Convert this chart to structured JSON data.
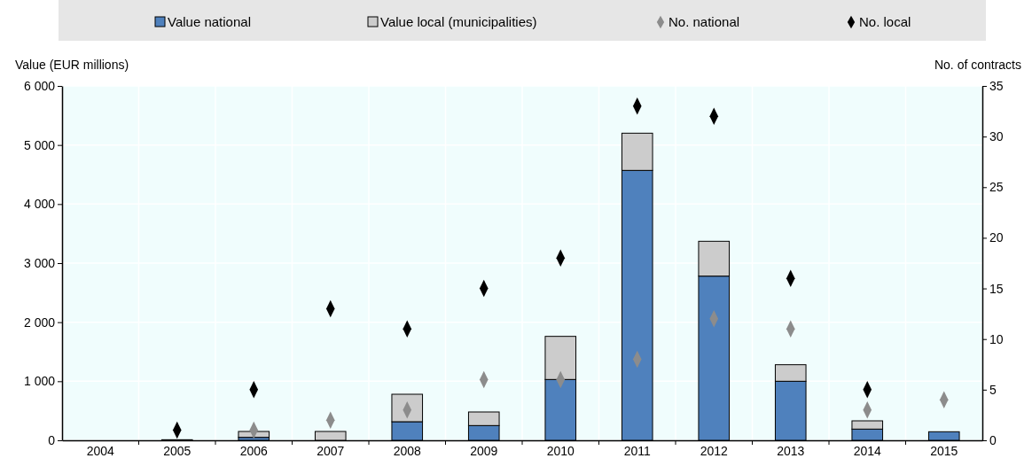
{
  "chart_data": {
    "type": "bar",
    "stacked": true,
    "categories": [
      "2004",
      "2005",
      "2006",
      "2007",
      "2008",
      "2009",
      "2010",
      "2011",
      "2012",
      "2013",
      "2014",
      "2015"
    ],
    "series": [
      {
        "name": "Value national",
        "color": "#4f81bd",
        "values": [
          0,
          10,
          50,
          0,
          315,
          250,
          1030,
          4570,
          2780,
          1000,
          190,
          145
        ]
      },
      {
        "name": "Value local (municipalities)",
        "color": "#cccccc",
        "values": [
          0,
          0,
          100,
          150,
          465,
          230,
          730,
          630,
          590,
          280,
          140,
          0
        ]
      },
      {
        "name": "No. national",
        "type": "scatter",
        "axis": "y2",
        "color": "#8c8c8c",
        "values": [
          null,
          null,
          1,
          2,
          3,
          6,
          6,
          8,
          12,
          11,
          3,
          4
        ]
      },
      {
        "name": "No. local",
        "type": "scatter",
        "axis": "y2",
        "color": "#000000",
        "values": [
          null,
          1,
          5,
          13,
          11,
          15,
          18,
          33,
          32,
          16,
          5,
          null
        ]
      }
    ],
    "ylabel": "Value (EUR millions)",
    "y2label": "No. of contracts",
    "ylim": [
      0,
      6000
    ],
    "yticks": [
      {
        "value": 0,
        "label": "0"
      },
      {
        "value": 1000,
        "label": "1 000"
      },
      {
        "value": 2000,
        "label": "2 000"
      },
      {
        "value": 3000,
        "label": "3 000"
      },
      {
        "value": 4000,
        "label": "4 000"
      },
      {
        "value": 5000,
        "label": "5 000"
      },
      {
        "value": 6000,
        "label": "6 000"
      }
    ],
    "y2lim": [
      0,
      35
    ],
    "y2ticks": [
      0,
      5,
      10,
      15,
      20,
      25,
      30,
      35
    ],
    "grid": true,
    "legend": "top",
    "marker": "diamond"
  }
}
